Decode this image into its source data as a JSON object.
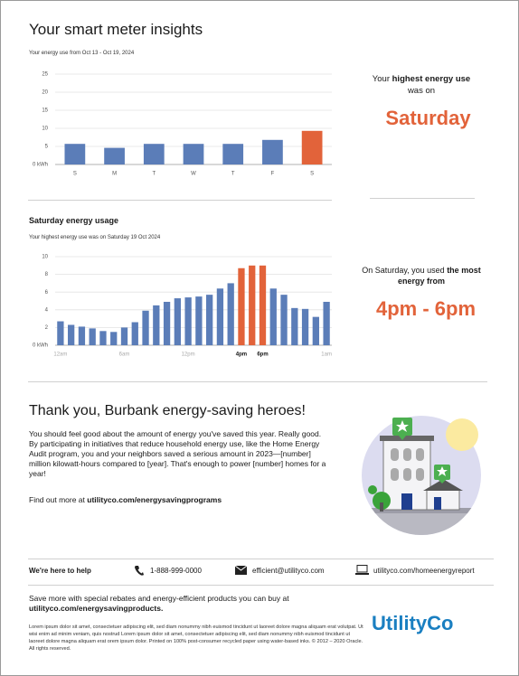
{
  "header": {
    "title": "Your smart meter insights"
  },
  "highlight_1": {
    "prefix": "Your ",
    "bold": "highest energy use",
    "suffix": "was on",
    "value": "Saturday"
  },
  "highlight_2": {
    "prefix": "On Saturday, you used ",
    "bold": "the most energy from",
    "value": "4pm - 6pm"
  },
  "chart_data": [
    {
      "type": "bar",
      "subtitle": "Your energy use from Oct 13 - Oct 19, 2024",
      "categories": [
        "S",
        "M",
        "T",
        "W",
        "T",
        "F",
        "S"
      ],
      "values": [
        5.7,
        4.6,
        5.7,
        5.7,
        5.7,
        6.8,
        9.3
      ],
      "colors": [
        "#5b7db8",
        "#5b7db8",
        "#5b7db8",
        "#5b7db8",
        "#5b7db8",
        "#5b7db8",
        "#e2633a"
      ],
      "ylim": [
        0,
        25
      ],
      "yticks": [
        {
          "value": 0,
          "label": "0 kWh"
        },
        5,
        10,
        15,
        20,
        25
      ],
      "grid": true
    },
    {
      "type": "bar",
      "title": "Saturday energy usage",
      "subtitle": "Your highest energy use was on Saturday 19 Oct 2024",
      "categories": [
        "12am",
        null,
        null,
        null,
        null,
        null,
        "6am",
        null,
        null,
        null,
        null,
        null,
        "12pm",
        null,
        null,
        null,
        null,
        "4pm",
        null,
        "6pm",
        null,
        null,
        null,
        null,
        null,
        "1am"
      ],
      "values": [
        2.7,
        2.3,
        2.1,
        1.9,
        1.6,
        1.5,
        2.0,
        2.6,
        3.9,
        4.5,
        4.9,
        5.3,
        5.4,
        5.5,
        5.7,
        6.4,
        7.0,
        8.7,
        9.0,
        9.0,
        6.4,
        5.7,
        4.2,
        4.1,
        3.2,
        4.9
      ],
      "colors": [
        "#5b7db8",
        "#5b7db8",
        "#5b7db8",
        "#5b7db8",
        "#5b7db8",
        "#5b7db8",
        "#5b7db8",
        "#5b7db8",
        "#5b7db8",
        "#5b7db8",
        "#5b7db8",
        "#5b7db8",
        "#5b7db8",
        "#5b7db8",
        "#5b7db8",
        "#5b7db8",
        "#5b7db8",
        "#e2633a",
        "#e2633a",
        "#e2633a",
        "#5b7db8",
        "#5b7db8",
        "#5b7db8",
        "#5b7db8",
        "#5b7db8",
        "#5b7db8"
      ],
      "ylim": [
        0,
        10
      ],
      "yticks": [
        {
          "value": 0,
          "label": "0 kWh"
        },
        2,
        4,
        6,
        8,
        10
      ],
      "grid": true
    }
  ],
  "thanks": {
    "title": "Thank you, Burbank energy-saving heroes!",
    "body": "You should feel good about the amount of energy you've saved this year. Really good. By participating in initiatives that reduce household energy use, like the Home Energy Audit program, you and your neighbors saved a serious amount in 2023—[number] million kilowatt-hours compared to [year]. That's enough to power [number] homes for a year!",
    "more_prefix": "Find out more at ",
    "more_link": "utilityco.com/energysavingprograms"
  },
  "contact": {
    "title": "We're here to help",
    "phone": "1-888-999-0000",
    "email": "efficient@utilityco.com",
    "website": "utilityco.com/homeenergyreport"
  },
  "footer": {
    "save_prefix": "Save more with special rebates and energy-efficient products you can buy at",
    "save_link": "utilityco.com/energysavingproducts.",
    "lorem": "Lorem ipsum dolor sit amet, consectetuer adipiscing elit, sed diam nonummy nibh euismod tincidunt ut laoreet dolore magna aliquam erat volutpat. Ut wisi enim ad minim veniam, quis nostrud Lorem ipsum dolor sit amet, consectetuer adipiscing elit, sed diam nonummy nibh euismod tincidunt ut laoreet dolore magna aliquam erat orem ipsum dolor.",
    "printed": "Printed on 100% post-consumer recycled paper using water-based inks. © 2012 – 2020 Oracle. All rights reserved.",
    "logo": "UtilityCo"
  }
}
